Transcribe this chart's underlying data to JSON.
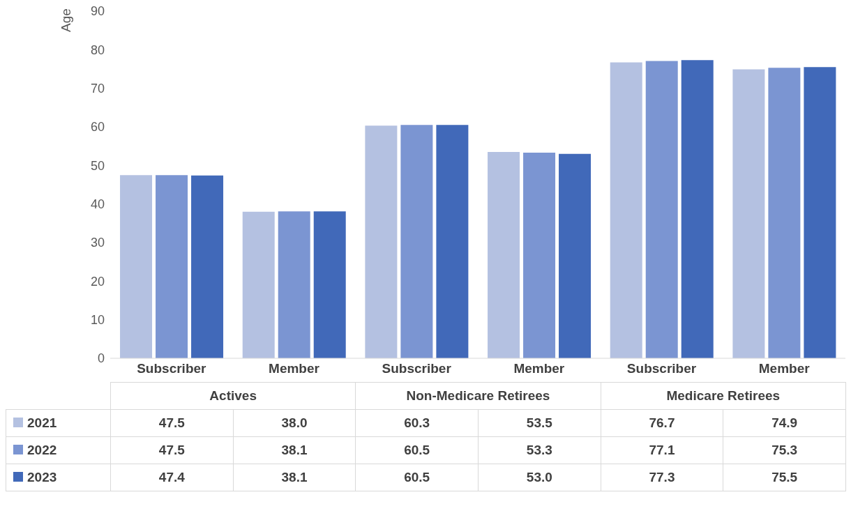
{
  "chart_data": {
    "type": "bar",
    "ylabel": "Age",
    "categories": [
      "Subscriber",
      "Member",
      "Subscriber",
      "Member",
      "Subscriber",
      "Member"
    ],
    "annotations": [
      "Actives",
      "Non-Medicare Retirees",
      "Medicare Retirees"
    ],
    "series": [
      {
        "name": "2021",
        "color": "#b4c1e1",
        "values": [
          47.5,
          38.0,
          60.3,
          53.5,
          76.7,
          74.9
        ],
        "value_labels": [
          "47.5",
          "38.0",
          "60.3",
          "53.5",
          "76.7",
          "74.9"
        ]
      },
      {
        "name": "2022",
        "color": "#7b95d2",
        "values": [
          47.5,
          38.1,
          60.5,
          53.3,
          77.1,
          75.3
        ],
        "value_labels": [
          "47.5",
          "38.1",
          "60.5",
          "53.3",
          "77.1",
          "75.3"
        ]
      },
      {
        "name": "2023",
        "color": "#4169b9",
        "values": [
          47.4,
          38.1,
          60.5,
          53.0,
          77.3,
          75.5
        ],
        "value_labels": [
          "47.4",
          "38.1",
          "60.5",
          "53.0",
          "77.3",
          "75.5"
        ]
      }
    ],
    "ylim": [
      0,
      90
    ],
    "yticks": [
      0,
      10,
      20,
      30,
      40,
      50,
      60,
      70,
      80,
      90
    ],
    "grid": false,
    "legend": "bottom"
  }
}
